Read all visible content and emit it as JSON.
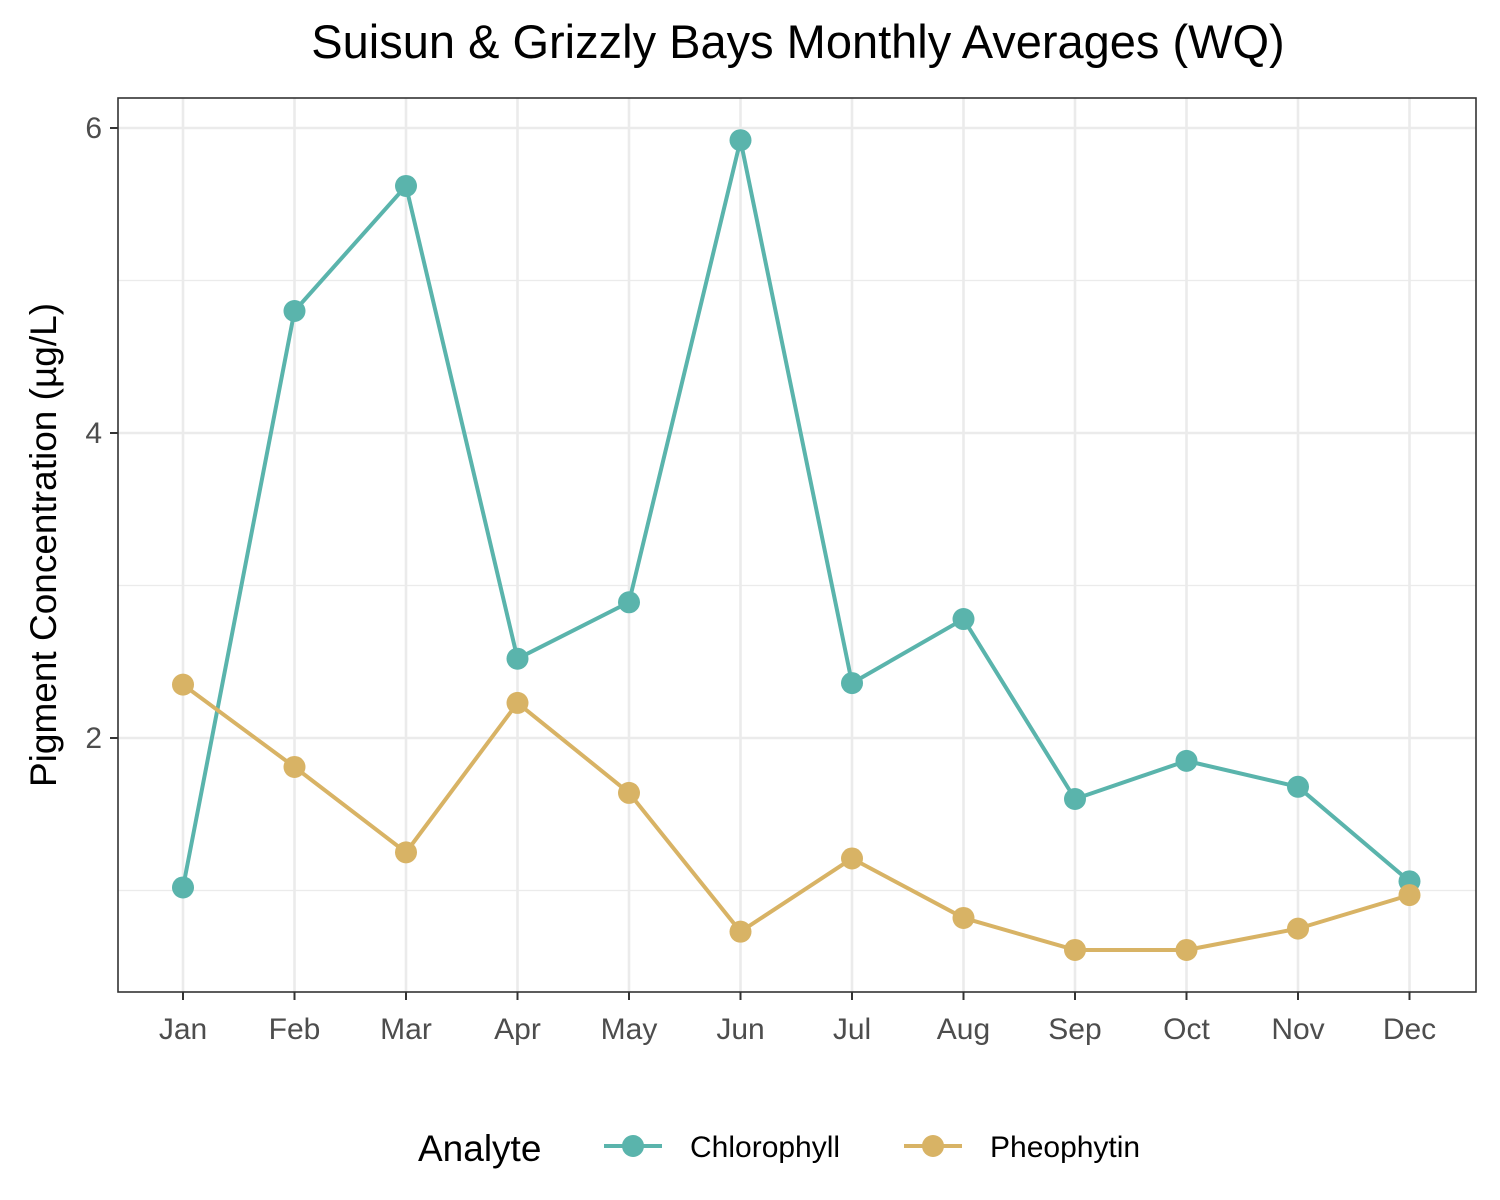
{
  "chart_data": {
    "type": "line",
    "title": "Suisun & Grizzly Bays Monthly Averages (WQ)",
    "xlabel": "",
    "ylabel": "Pigment Concentration (µg/L)",
    "categories": [
      "Jan",
      "Feb",
      "Mar",
      "Apr",
      "May",
      "Jun",
      "Jul",
      "Aug",
      "Sep",
      "Oct",
      "Nov",
      "Dec"
    ],
    "ylim": [
      0.4,
      6.2
    ],
    "yticks": [
      2,
      4,
      6
    ],
    "grid": true,
    "legend_position": "bottom",
    "legend_title": "Analyte",
    "series": [
      {
        "name": "Chlorophyll",
        "color": "#5AB4AC",
        "values": [
          1.02,
          4.8,
          5.62,
          2.52,
          2.89,
          5.92,
          2.36,
          2.78,
          1.6,
          1.85,
          1.68,
          1.06
        ]
      },
      {
        "name": "Pheophytin",
        "color": "#D8B365",
        "values": [
          2.35,
          1.81,
          1.25,
          2.23,
          1.64,
          0.73,
          1.21,
          0.82,
          0.61,
          0.61,
          0.75,
          0.97
        ]
      }
    ]
  }
}
